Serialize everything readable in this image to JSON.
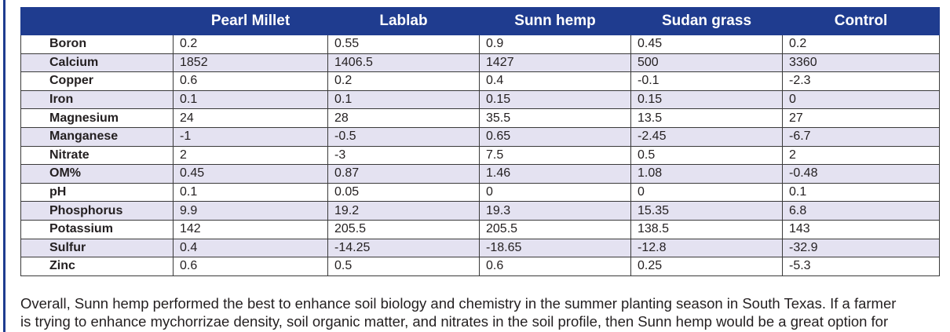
{
  "table": {
    "columns": [
      "",
      "Pearl Millet",
      "Lablab",
      "Sunn hemp",
      "Sudan grass",
      "Control"
    ],
    "rows": [
      [
        "Boron",
        "0.2",
        "0.55",
        "0.9",
        "0.45",
        "0.2"
      ],
      [
        "Calcium",
        "1852",
        "1406.5",
        "1427",
        "500",
        "3360"
      ],
      [
        "Copper",
        "0.6",
        "0.2",
        "0.4",
        "-0.1",
        "-2.3"
      ],
      [
        "Iron",
        "0.1",
        "0.1",
        "0.15",
        "0.15",
        "0"
      ],
      [
        "Magnesium",
        "24",
        "28",
        "35.5",
        "13.5",
        "27"
      ],
      [
        "Manganese",
        "-1",
        "-0.5",
        "0.65",
        "-2.45",
        "-6.7"
      ],
      [
        "Nitrate",
        "2",
        "-3",
        "7.5",
        "0.5",
        "2"
      ],
      [
        "OM%",
        "0.45",
        "0.87",
        "1.46",
        "1.08",
        "-0.48"
      ],
      [
        "pH",
        "0.1",
        "0.05",
        "0",
        "0",
        "0.1"
      ],
      [
        "Phosphorus",
        "9.9",
        "19.2",
        "19.3",
        "15.35",
        "6.8"
      ],
      [
        "Potassium",
        "142",
        "205.5",
        "205.5",
        "138.5",
        "143"
      ],
      [
        "Sulfur",
        "0.4",
        "-14.25",
        "-18.65",
        "-12.8",
        "-32.9"
      ],
      [
        "Zinc",
        "0.6",
        "0.5",
        "0.6",
        "0.25",
        "-5.3"
      ]
    ]
  },
  "paragraph": {
    "line1": "Overall, Sunn hemp performed the best to enhance soil biology and chemistry in the summer planting season in South Texas. If a farmer",
    "line2": "is trying to enhance mychorrizae density, soil organic matter, and nitrates in the soil profile, then Sunn hemp would be a great option for"
  },
  "colors": {
    "header_bg": "#1f3c8f",
    "row_alt_bg": "#e4e2f1",
    "left_rule": "#1f3c8f"
  }
}
